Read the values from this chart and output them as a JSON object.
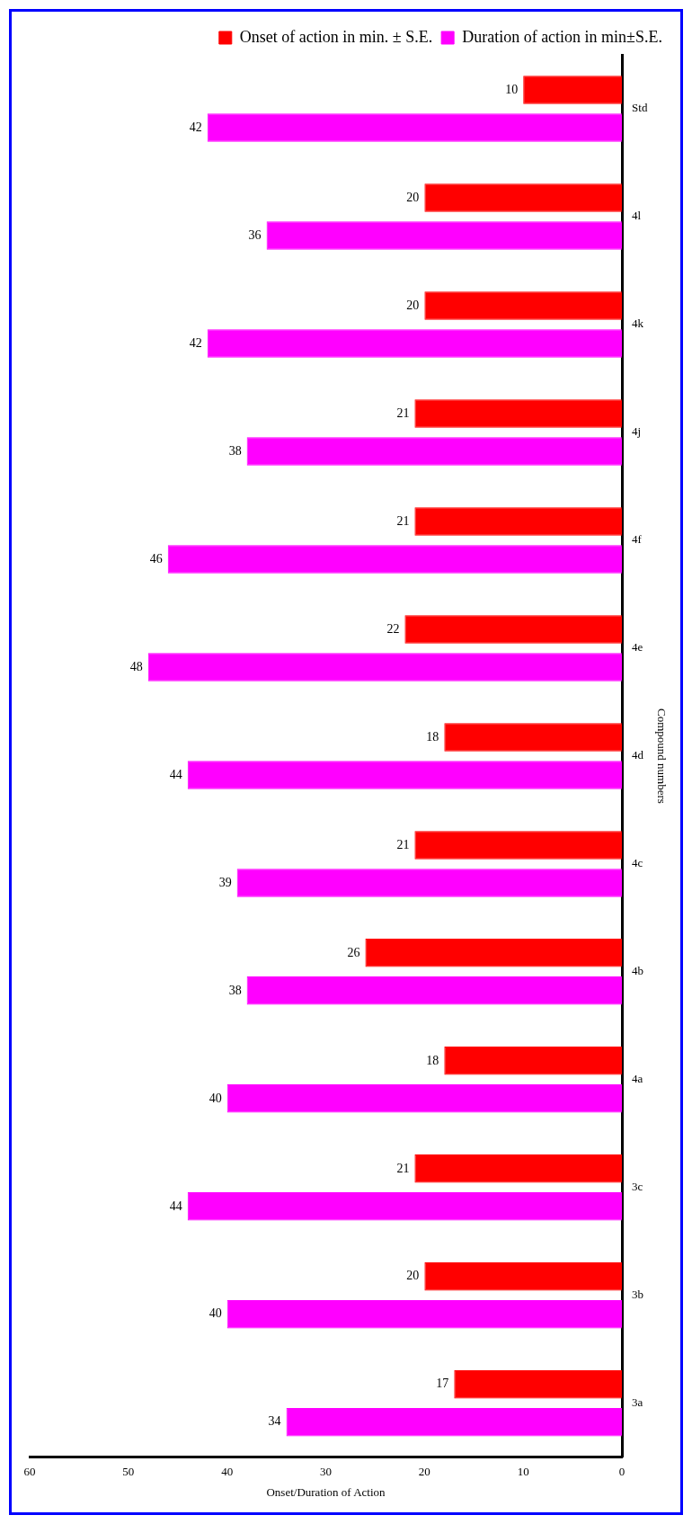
{
  "chart_data": {
    "type": "bar",
    "orientation": "horizontal",
    "xlabel": "Onset/Duration of Action",
    "ylabel": "Compound numbers",
    "categories": [
      "Std",
      "4l",
      "4k",
      "4j",
      "4f",
      "4e",
      "4d",
      "4c",
      "4b",
      "4a",
      "3c",
      "3b",
      "3a"
    ],
    "series": [
      {
        "name": "Onset of action in min. ± S.E.",
        "color": "#ff0000",
        "values": [
          10,
          20,
          20,
          21,
          21,
          22,
          18,
          21,
          26,
          18,
          21,
          20,
          17
        ]
      },
      {
        "name": "Duration of action in min±S.E.",
        "color": "#ff00ff",
        "values": [
          42,
          36,
          42,
          38,
          46,
          48,
          44,
          39,
          38,
          40,
          44,
          40,
          34
        ]
      }
    ],
    "xlim": [
      60,
      0
    ],
    "xticks": [
      60,
      50,
      40,
      30,
      20,
      10,
      0
    ],
    "data_labels": true,
    "grid": false,
    "legend": "top right"
  }
}
